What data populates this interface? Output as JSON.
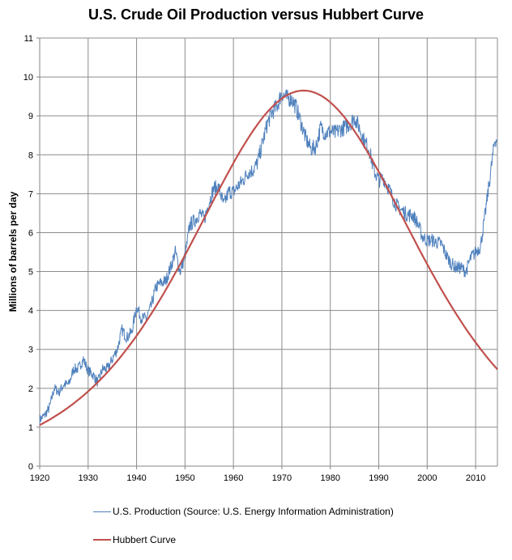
{
  "chart_data": {
    "type": "line",
    "title": "U.S. Crude Oil Production versus Hubbert Curve",
    "xlabel": "",
    "ylabel": "Millions of barrels per day",
    "xlim": [
      1920,
      2014.5
    ],
    "ylim": [
      0,
      11
    ],
    "x_ticks": [
      1920,
      1930,
      1940,
      1950,
      1960,
      1970,
      1980,
      1990,
      2000,
      2010
    ],
    "y_ticks": [
      0,
      1,
      2,
      3,
      4,
      5,
      6,
      7,
      8,
      9,
      10,
      11
    ],
    "grid": true,
    "legend": "bottom",
    "series": [
      {
        "name": "U.S. Production (Source: U.S. Energy Information Administration)",
        "color": "#4f81bd",
        "x": [
          1920,
          1921,
          1922,
          1923,
          1924,
          1925,
          1926,
          1927,
          1928,
          1929,
          1930,
          1931,
          1932,
          1933,
          1934,
          1935,
          1936,
          1937,
          1938,
          1939,
          1940,
          1941,
          1942,
          1943,
          1944,
          1945,
          1946,
          1947,
          1948,
          1949,
          1950,
          1951,
          1952,
          1953,
          1954,
          1955,
          1956,
          1957,
          1958,
          1959,
          1960,
          1961,
          1962,
          1963,
          1964,
          1965,
          1966,
          1967,
          1968,
          1969,
          1970,
          1971,
          1972,
          1973,
          1974,
          1975,
          1976,
          1977,
          1978,
          1979,
          1980,
          1981,
          1982,
          1983,
          1984,
          1985,
          1986,
          1987,
          1988,
          1989,
          1990,
          1991,
          1992,
          1993,
          1994,
          1995,
          1996,
          1997,
          1998,
          1999,
          2000,
          2001,
          2002,
          2003,
          2004,
          2005,
          2006,
          2007,
          2008,
          2009,
          2010,
          2011,
          2012,
          2013,
          2014
        ],
        "values": [
          1.2,
          1.3,
          1.5,
          2.0,
          1.9,
          2.1,
          2.1,
          2.5,
          2.5,
          2.75,
          2.45,
          2.35,
          2.15,
          2.5,
          2.5,
          2.75,
          3.0,
          3.5,
          3.3,
          3.45,
          4.1,
          3.8,
          3.8,
          4.1,
          4.6,
          4.7,
          4.75,
          5.1,
          5.5,
          5.0,
          5.4,
          6.2,
          6.3,
          6.5,
          6.35,
          6.8,
          7.15,
          7.15,
          6.7,
          7.05,
          7.05,
          7.2,
          7.35,
          7.55,
          7.6,
          7.8,
          8.3,
          8.8,
          9.1,
          9.25,
          9.6,
          9.45,
          9.45,
          9.2,
          8.8,
          8.4,
          8.15,
          8.2,
          8.7,
          8.55,
          8.6,
          8.55,
          8.65,
          8.7,
          8.8,
          8.95,
          8.7,
          8.35,
          8.15,
          7.6,
          7.35,
          7.4,
          7.15,
          6.85,
          6.65,
          6.55,
          6.45,
          6.45,
          6.25,
          5.9,
          5.8,
          5.8,
          5.75,
          5.7,
          5.4,
          5.2,
          5.1,
          5.1,
          5.0,
          5.35,
          5.5,
          5.65,
          6.5,
          7.45,
          8.4
        ]
      },
      {
        "name": "Hubbert Curve",
        "color": "#c0504d",
        "peak_year": 1974.5,
        "peak_value": 9.65
      }
    ]
  }
}
